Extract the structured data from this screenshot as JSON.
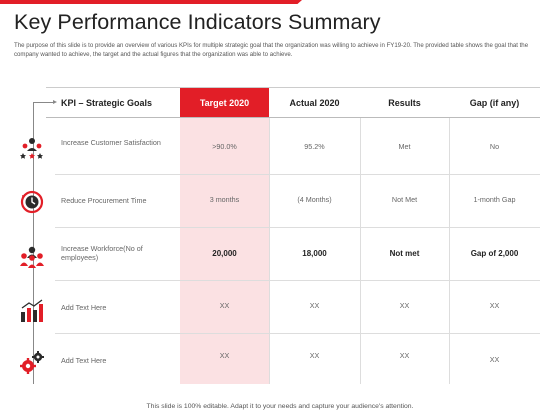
{
  "title": "Key Performance Indicators Summary",
  "intro": "The purpose of this slide is to provide an overview of various KPIs for multiple strategic goal that the organization was willing to achieve in FY19-20. The provided table shows the goal that the company wanted to achieve, the target and the actual figures that the organization was able to achieve.",
  "colors": {
    "accent": "#e21e27",
    "target_column": "#fbe1e3"
  },
  "table": {
    "headers": [
      "KPI – Strategic Goals",
      "Target 2020",
      "Actual 2020",
      "Results",
      "Gap (if any)"
    ],
    "rows": [
      {
        "icon": "team-rating-icon",
        "kpi": "Increase Customer Satisfaction",
        "target": ">90.0%",
        "actual": "95.2%",
        "results": "Met",
        "gap": "No",
        "bold": false
      },
      {
        "icon": "clock-icon",
        "kpi": "Reduce Procurement Time",
        "target": "3 months",
        "actual": "(4 Months)",
        "results": "Not Met",
        "gap": "1-month Gap",
        "bold": false
      },
      {
        "icon": "workforce-icon",
        "kpi": "Increase Workforce(No of employees)",
        "target": "20,000",
        "actual": "18,000",
        "results": "Not met",
        "gap": "Gap of 2,000",
        "bold": true
      },
      {
        "icon": "bar-chart-icon",
        "kpi": "Add Text Here",
        "target": "XX",
        "actual": "XX",
        "results": "XX",
        "gap": "XX",
        "bold": false
      },
      {
        "icon": "gears-icon",
        "kpi": "Add Text Here",
        "target": "XX",
        "actual": "XX",
        "results": "XX",
        "gap": "XX",
        "bold": false
      }
    ]
  },
  "footer": "This slide is 100% editable. Adapt it to your needs and capture your audience's attention."
}
